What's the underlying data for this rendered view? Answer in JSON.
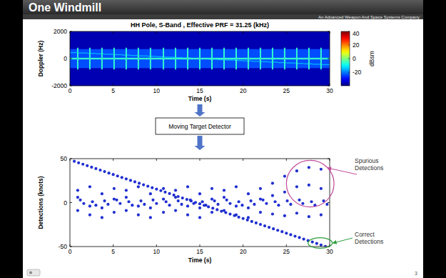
{
  "slide": {
    "title": "One Windmill",
    "company": "An Advanced Weapon And Space Systems Company",
    "flow_step": "Moving Target Detector",
    "page_number": 3
  },
  "chart_data": [
    {
      "type": "heatmap",
      "title": "HH Pole, S-Band ,  Effective PRF = 31.25 (kHz)",
      "x_label": "Time (s)",
      "y_label": "Doppler (Hz)",
      "xlim": [
        0,
        30
      ],
      "xticks": [
        0,
        5,
        10,
        15,
        20,
        25,
        30
      ],
      "ylim": [
        -2000,
        2000
      ],
      "yticks": [
        -2000,
        0,
        2000
      ],
      "cells": [
        [
          0,
          30,
          -2000,
          2000,
          -36
        ],
        [
          0,
          30,
          -700,
          700,
          -24
        ],
        [
          0,
          1,
          410,
          480,
          -16
        ],
        [
          1,
          2,
          379,
          449,
          -16
        ],
        [
          2,
          3,
          348,
          418,
          -16
        ],
        [
          3,
          4,
          318,
          388,
          -16
        ],
        [
          4,
          5,
          287,
          357,
          -16
        ],
        [
          5,
          6,
          256,
          326,
          -16
        ],
        [
          6,
          7,
          226,
          296,
          -16
        ],
        [
          7,
          8,
          195,
          265,
          -16
        ],
        [
          8,
          9,
          164,
          234,
          -16
        ],
        [
          9,
          10,
          134,
          204,
          -16
        ],
        [
          10,
          11,
          103,
          173,
          -16
        ],
        [
          11,
          12,
          72,
          142,
          -16
        ],
        [
          12,
          13,
          42,
          112,
          -16
        ],
        [
          13,
          14,
          11,
          81,
          -16
        ],
        [
          14,
          15,
          -20,
          50,
          -16
        ],
        [
          15,
          16,
          -50,
          20,
          -16
        ],
        [
          16,
          17,
          -81,
          -11,
          -16
        ],
        [
          17,
          18,
          -112,
          -42,
          -16
        ],
        [
          18,
          19,
          -142,
          -72,
          -16
        ],
        [
          19,
          20,
          -173,
          -103,
          -16
        ],
        [
          20,
          21,
          -204,
          -134,
          -16
        ],
        [
          21,
          22,
          -234,
          -164,
          -16
        ],
        [
          22,
          23,
          -265,
          -195,
          -16
        ],
        [
          23,
          24,
          -296,
          -226,
          -16
        ],
        [
          24,
          25,
          -326,
          -256,
          -16
        ],
        [
          25,
          26,
          -357,
          -287,
          -16
        ],
        [
          26,
          27,
          -388,
          -318,
          -16
        ],
        [
          27,
          28,
          -418,
          -348,
          -16
        ],
        [
          28,
          29,
          -449,
          -379,
          -16
        ],
        [
          29,
          30,
          -480,
          -410,
          -16
        ],
        [
          0,
          30,
          -60,
          60,
          -6
        ],
        [
          0.82,
          0.98,
          -800,
          800,
          -6
        ],
        [
          2.22,
          2.38,
          -800,
          800,
          -6
        ],
        [
          3.62,
          3.78,
          -800,
          800,
          -6
        ],
        [
          5.02,
          5.18,
          -800,
          800,
          -6
        ],
        [
          6.42,
          6.58,
          -800,
          800,
          -6
        ],
        [
          7.82,
          7.98,
          -800,
          800,
          -6
        ],
        [
          9.22,
          9.38,
          -800,
          800,
          -6
        ],
        [
          10.72,
          10.88,
          -800,
          800,
          -6
        ],
        [
          12.12,
          12.28,
          -800,
          800,
          -6
        ],
        [
          13.52,
          13.68,
          -800,
          800,
          -6
        ],
        [
          14.92,
          15.08,
          -800,
          800,
          -6
        ],
        [
          16.32,
          16.48,
          -800,
          800,
          -6
        ],
        [
          17.72,
          17.88,
          -800,
          800,
          -6
        ],
        [
          19.12,
          19.28,
          -800,
          800,
          -6
        ],
        [
          20.52,
          20.68,
          -800,
          800,
          -6
        ],
        [
          21.92,
          22.08,
          -800,
          800,
          -6
        ],
        [
          23.32,
          23.48,
          -800,
          800,
          -6
        ],
        [
          24.72,
          24.88,
          -800,
          800,
          -6
        ],
        [
          26.12,
          26.28,
          -800,
          800,
          -6
        ],
        [
          27.52,
          27.68,
          -800,
          800,
          -6
        ],
        [
          28.92,
          29.08,
          -800,
          800,
          -6
        ]
      ],
      "colorbar": {
        "label": "dBsm",
        "range": [
          -40,
          40
        ],
        "ticks": [
          40,
          20,
          0,
          -20
        ]
      }
    },
    {
      "type": "scatter",
      "x_label": "Time (s)",
      "y_label": "Detections (knots)",
      "xlim": [
        0,
        30
      ],
      "xticks": [
        0,
        5,
        10,
        15,
        20,
        25,
        30
      ],
      "ylim": [
        -50,
        50
      ],
      "yticks": [
        -50,
        0,
        50
      ],
      "color": "#1f2fd0",
      "marker": "dot",
      "x": [
        0.9,
        0.9,
        0.9,
        1.2,
        1.6,
        2.3,
        2.3,
        2.3,
        2.6,
        3,
        3.7,
        3.7,
        3.7,
        4,
        4.4,
        5.1,
        5.1,
        5.1,
        5.4,
        5.8,
        6.5,
        6.5,
        6.5,
        6.8,
        7.2,
        7.9,
        7.9,
        7.9,
        8.2,
        8.6,
        9.3,
        9.3,
        9.3,
        9.6,
        10,
        10.8,
        10.8,
        10.8,
        11.1,
        11.5,
        12.2,
        12.2,
        12.2,
        12.5,
        12.9,
        13.6,
        13.6,
        13.6,
        13.9,
        14.3,
        15,
        15,
        15,
        15.3,
        15.7,
        16.4,
        16.4,
        16.4,
        16.7,
        17.1,
        17.8,
        17.8,
        17.8,
        18.1,
        18.5,
        19.2,
        19.2,
        19.2,
        19.5,
        19.9,
        20.6,
        20.6,
        20.6,
        20.9,
        21.3,
        22,
        22,
        22,
        22.3,
        22.7,
        23.4,
        23.4,
        23.4,
        23.7,
        24.1,
        24.8,
        24.8,
        24.8,
        25.1,
        25.5,
        26.2,
        26.2,
        26.2,
        26.5,
        26.9,
        27.6,
        27.6,
        27.6,
        27.9,
        28.3,
        29,
        29,
        29,
        29.3,
        29.7,
        0.5,
        1,
        1.5,
        2,
        2.5,
        3,
        3.5,
        4,
        4.5,
        5,
        5.5,
        6,
        6.5,
        7,
        7.5,
        8,
        8.5,
        9,
        9.5,
        10,
        10.5,
        11,
        11.5,
        12,
        12.5,
        13,
        13.5,
        14,
        14.5,
        15,
        15.5,
        16,
        16.5,
        17,
        17.5,
        18,
        18.5,
        19,
        19.5,
        20,
        20.5,
        21,
        21.5,
        22,
        22.5,
        23,
        23.5,
        24,
        24.5,
        25,
        25.5,
        26,
        26.5,
        27,
        27.5,
        28,
        28.5,
        29,
        29.5
      ],
      "values": [
        14,
        6,
        -9,
        3,
        -1,
        18,
        -4,
        -14,
        1,
        -3,
        10,
        -6,
        -17,
        2,
        -2,
        16,
        4,
        -11,
        3,
        -1,
        14,
        6,
        -9,
        1,
        -3,
        18,
        -4,
        -14,
        2,
        -2,
        10,
        -6,
        -17,
        3,
        -1,
        16,
        4,
        -11,
        1,
        -3,
        14,
        6,
        -9,
        2,
        -2,
        18,
        -4,
        -14,
        3,
        -1,
        10,
        -6,
        -17,
        1,
        -3,
        16,
        4,
        -11,
        2,
        -2,
        14,
        6,
        -9,
        3,
        -1,
        18,
        -4,
        -14,
        1,
        -3,
        10,
        -6,
        -17,
        2,
        -2,
        16,
        4,
        -11,
        3,
        -1,
        22,
        8,
        -13,
        1,
        -3,
        30,
        12,
        -15,
        2,
        -2,
        36,
        18,
        -12,
        3,
        -1,
        40,
        20,
        -16,
        1,
        -3,
        38,
        16,
        -14,
        2,
        -2,
        47,
        45.3,
        43.7,
        42,
        40.3,
        38.7,
        37,
        35.3,
        33.6,
        32,
        30.3,
        28.6,
        27,
        25.3,
        23.6,
        22,
        20.3,
        18.6,
        16.9,
        15.3,
        13.6,
        11.9,
        10.3,
        8.6,
        6.9,
        5.3,
        3.6,
        1.9,
        0.2,
        -1.4,
        -3.1,
        -4.8,
        -6.4,
        -8.1,
        -9.8,
        -11.4,
        -13.1,
        -14.8,
        -16.5,
        -18.1,
        -19.8,
        -21.5,
        -23.1,
        -24.8,
        -26.5,
        -28.1,
        -29.8,
        -31.5,
        -33.1,
        -34.8,
        -36.5,
        -38.2,
        -39.8,
        -41.5,
        -43.2,
        -44.8,
        -46.5,
        -48.2,
        -49.8
      ],
      "annotations": [
        {
          "text": "Spurious Detections",
          "color": "#c04a9a",
          "x_range": [
            25,
            30.5
          ],
          "y_range": [
            -5,
            48
          ]
        },
        {
          "text": "Correct Detections",
          "color": "#2e9e3e",
          "x_range": [
            27.5,
            30.3
          ],
          "y_range": [
            -52,
            -40
          ]
        }
      ]
    }
  ]
}
